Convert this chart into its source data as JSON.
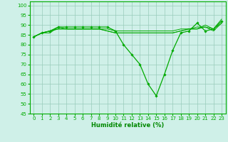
{
  "title": "",
  "xlabel": "Humidité relative (%)",
  "ylabel": "",
  "bg_color": "#cff0e8",
  "grid_color": "#99ccbb",
  "line_color": "#00aa00",
  "xlabel_color": "#008800",
  "ylim": [
    45,
    102
  ],
  "xlim": [
    -0.5,
    23.5
  ],
  "yticks": [
    45,
    50,
    55,
    60,
    65,
    70,
    75,
    80,
    85,
    90,
    95,
    100
  ],
  "xticks": [
    0,
    1,
    2,
    3,
    4,
    5,
    6,
    7,
    8,
    9,
    10,
    11,
    12,
    13,
    14,
    15,
    16,
    17,
    18,
    19,
    20,
    21,
    22,
    23
  ],
  "series": [
    [
      84,
      86,
      86,
      89,
      88,
      88,
      88,
      88,
      88,
      88,
      87,
      87,
      87,
      87,
      87,
      87,
      87,
      87,
      88,
      88,
      88,
      90,
      88,
      93
    ],
    [
      84,
      86,
      87,
      89,
      89,
      89,
      89,
      89,
      89,
      89,
      87,
      80,
      75,
      70,
      60,
      54,
      65,
      77,
      86,
      87,
      91,
      87,
      88,
      92
    ],
    [
      84,
      86,
      87,
      88,
      88,
      88,
      88,
      88,
      88,
      87,
      86,
      86,
      86,
      86,
      86,
      86,
      86,
      86,
      87,
      88,
      88,
      89,
      88,
      91
    ],
    [
      84,
      86,
      87,
      88,
      88,
      88,
      88,
      88,
      88,
      87,
      86,
      86,
      86,
      86,
      86,
      86,
      86,
      86,
      87,
      88,
      89,
      89,
      87,
      91
    ]
  ],
  "marker_series": 1,
  "marker": "D",
  "markersize": 1.8,
  "linewidth_marker": 0.9,
  "linewidth_plain": 0.7,
  "tick_fontsize": 5.0,
  "xlabel_fontsize": 6.0
}
